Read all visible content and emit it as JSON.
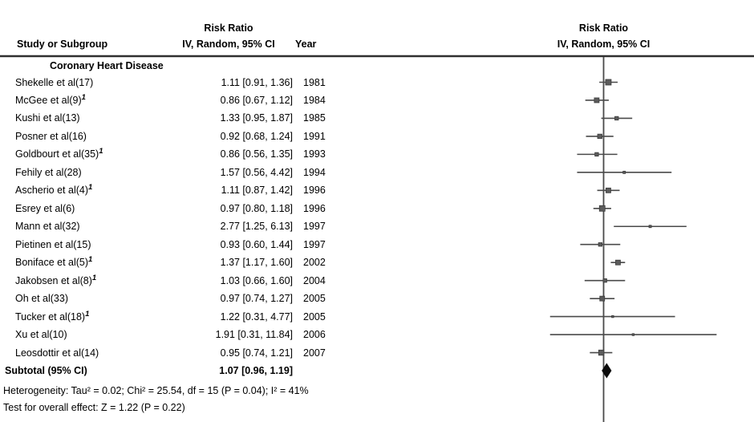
{
  "page": {
    "background": "#ffffff"
  },
  "left_table": {
    "header": {
      "study_or_subgroup": "Study or Subgroup",
      "effect_line1": "Risk Ratio",
      "effect_line2": "IV, Random, 95% CI",
      "year": "Year"
    }
  },
  "plot_header": {
    "line1": "Risk Ratio",
    "line2": "IV, Random, 95% CI"
  },
  "colors": {
    "text": "#000000",
    "header_rule": "#2f2f2f",
    "axis_line": "#4a4a4a",
    "ci_line": "#4a4a4a",
    "marker_fill": "#5c5c5c",
    "marker_edge": "#3c3c3c",
    "diamond_fill": "#0a0a0a"
  },
  "chart_data": {
    "type": "forest",
    "scale": "log",
    "effect_measure": "Risk Ratio",
    "method": "IV, Random, 95% CI",
    "null_value": 1,
    "subgroup": "Coronary Heart Disease",
    "studies": [
      {
        "label": "Shekelle et al(17)",
        "footnote": "",
        "rr": 1.11,
        "ci_low": 0.91,
        "ci_high": 1.36,
        "year": "1981",
        "ci_text": "1.11 [0.91, 1.36]",
        "marker_px": 7
      },
      {
        "label": "McGee et al(9)",
        "footnote": "1",
        "rr": 0.86,
        "ci_low": 0.67,
        "ci_high": 1.12,
        "year": "1984",
        "ci_text": "0.86 [0.67, 1.12]",
        "marker_px": 6
      },
      {
        "label": "Kushi et al(13)",
        "footnote": "",
        "rr": 1.33,
        "ci_low": 0.95,
        "ci_high": 1.87,
        "year": "1985",
        "ci_text": "1.33 [0.95, 1.87]",
        "marker_px": 4.5
      },
      {
        "label": "Posner et al(16)",
        "footnote": "",
        "rr": 0.92,
        "ci_low": 0.68,
        "ci_high": 1.24,
        "year": "1991",
        "ci_text": "0.92 [0.68, 1.24]",
        "marker_px": 5.5
      },
      {
        "label": "Goldbourt et al(35)",
        "footnote": "1",
        "rr": 0.86,
        "ci_low": 0.56,
        "ci_high": 1.35,
        "year": "1993",
        "ci_text": "0.86 [0.56, 1.35]",
        "marker_px": 4.5
      },
      {
        "label": "Fehily et al(28)",
        "footnote": "",
        "rr": 1.57,
        "ci_low": 0.56,
        "ci_high": 4.42,
        "year": "1994",
        "ci_text": "1.57 [0.56, 4.42]",
        "marker_px": 3
      },
      {
        "label": "Ascherio et al(4)",
        "footnote": "1",
        "rr": 1.11,
        "ci_low": 0.87,
        "ci_high": 1.42,
        "year": "1996",
        "ci_text": "1.11 [0.87, 1.42]",
        "marker_px": 6
      },
      {
        "label": "Esrey et al(6)",
        "footnote": "",
        "rr": 0.97,
        "ci_low": 0.8,
        "ci_high": 1.18,
        "year": "1996",
        "ci_text": "0.97 [0.80, 1.18]",
        "marker_px": 7
      },
      {
        "label": "Mann et al(32)",
        "footnote": "",
        "rr": 2.77,
        "ci_low": 1.25,
        "ci_high": 6.13,
        "year": "1997",
        "ci_text": "2.77 [1.25, 6.13]",
        "marker_px": 3
      },
      {
        "label": "Pietinen et al(15)",
        "footnote": "",
        "rr": 0.93,
        "ci_low": 0.6,
        "ci_high": 1.44,
        "year": "1997",
        "ci_text": "0.93 [0.60, 1.44]",
        "marker_px": 4.5
      },
      {
        "label": "Boniface et al(5)",
        "footnote": "1",
        "rr": 1.37,
        "ci_low": 1.17,
        "ci_high": 1.6,
        "year": "2002",
        "ci_text": "1.37 [1.17, 1.60]",
        "marker_px": 6
      },
      {
        "label": "Jakobsen et al(8)",
        "footnote": "1",
        "rr": 1.03,
        "ci_low": 0.66,
        "ci_high": 1.6,
        "year": "2004",
        "ci_text": "1.03 [0.66, 1.60]",
        "marker_px": 4.5
      },
      {
        "label": "Oh et al(33)",
        "footnote": "",
        "rr": 0.97,
        "ci_low": 0.74,
        "ci_high": 1.27,
        "year": "2005",
        "ci_text": "0.97 [0.74, 1.27]",
        "marker_px": 6
      },
      {
        "label": "Tucker et al(18)",
        "footnote": "1",
        "rr": 1.22,
        "ci_low": 0.31,
        "ci_high": 4.77,
        "year": "2005",
        "ci_text": "1.22 [0.31, 4.77]",
        "marker_px": 2.5
      },
      {
        "label": "Xu et al(10)",
        "footnote": "",
        "rr": 1.91,
        "ci_low": 0.31,
        "ci_high": 11.84,
        "year": "2006",
        "ci_text": "1.91 [0.31, 11.84]",
        "marker_px": 2.5
      },
      {
        "label": "Leosdottir et al(14)",
        "footnote": "",
        "rr": 0.95,
        "ci_low": 0.74,
        "ci_high": 1.21,
        "year": "2007",
        "ci_text": "0.95 [0.74, 1.21]",
        "marker_px": 6.5
      }
    ],
    "subtotal": {
      "label": "Subtotal (95% CI)",
      "rr": 1.07,
      "ci_low": 0.96,
      "ci_high": 1.19,
      "ci_text": "1.07 [0.96, 1.19]"
    },
    "annotations": {
      "heterogeneity": "Heterogeneity: Tau² = 0.02; Chi² = 25.54, df = 15 (P = 0.04); I² = 41%",
      "overall_effect": "Test for overall effect: Z = 1.22 (P = 0.22)"
    }
  }
}
